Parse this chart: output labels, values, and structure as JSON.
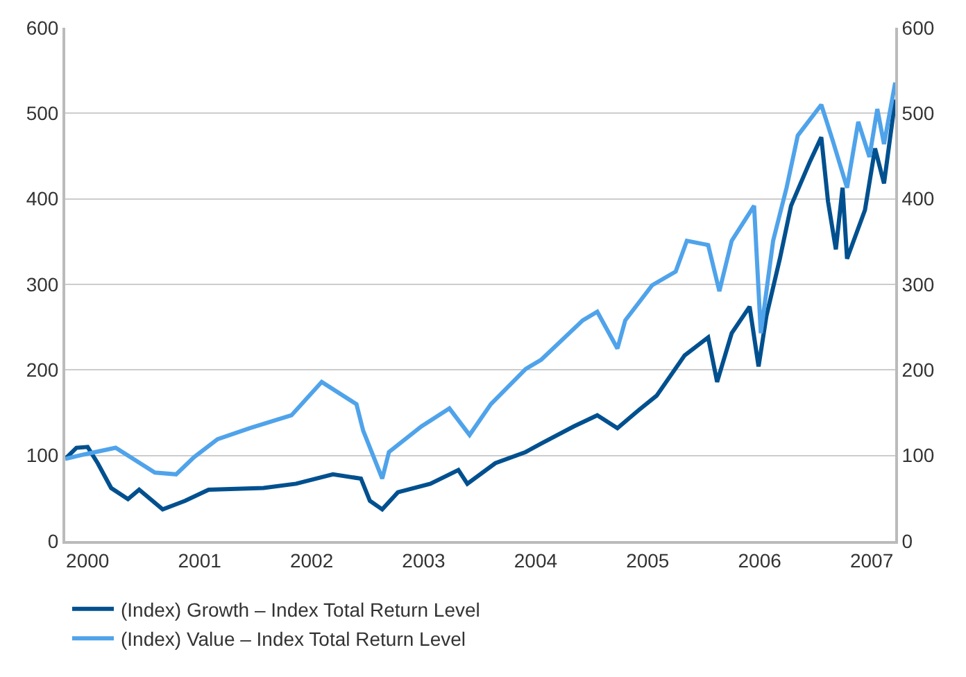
{
  "chart_data": {
    "type": "line",
    "legend": "bottom",
    "grid": "y",
    "marker": "none",
    "line_style": "solid",
    "xlim": [
      1999.8,
      2007.21
    ],
    "xticks": [
      2000,
      2001,
      2002,
      2003,
      2004,
      2005,
      2006,
      2007
    ],
    "ylim": [
      0,
      600
    ],
    "yticks": [
      0,
      100,
      200,
      300,
      400,
      500,
      600
    ],
    "y2lim": [
      0,
      600
    ],
    "y2ticks": [
      0,
      100,
      200,
      300,
      400,
      500,
      600
    ],
    "series": [
      {
        "name": "(Index) Growth – Index Total Return Level",
        "color": "#00508f",
        "x": [
          1999.8,
          1999.9,
          2000.0,
          2000.09,
          2000.21,
          2000.36,
          2000.46,
          2000.67,
          2000.87,
          2001.08,
          2001.57,
          2001.86,
          2002.19,
          2002.44,
          2002.52,
          2002.63,
          2002.77,
          2003.06,
          2003.31,
          2003.39,
          2003.64,
          2003.91,
          2004.05,
          2004.34,
          2004.55,
          2004.73,
          2004.92,
          2005.08,
          2005.33,
          2005.54,
          2005.62,
          2005.75,
          2005.91,
          2005.99,
          2006.06,
          2006.18,
          2006.28,
          2006.45,
          2006.55,
          2006.61,
          2006.68,
          2006.74,
          2006.78,
          2006.94,
          2007.03,
          2007.11,
          2007.21
        ],
        "values": [
          96,
          109,
          110,
          91,
          62,
          49,
          60,
          37,
          47,
          60,
          62,
          67,
          78,
          73,
          47,
          37,
          57,
          67,
          83,
          67,
          91,
          104,
          114,
          134,
          147,
          132,
          153,
          170,
          217,
          238,
          186,
          243,
          274,
          204,
          263,
          330,
          392,
          444,
          472,
          397,
          341,
          413,
          330,
          387,
          459,
          418,
          516
        ]
      },
      {
        "name": "(Index) Value – Index Total Return Level",
        "color": "#4fa3ea",
        "x": [
          1999.8,
          1999.96,
          2000.25,
          2000.6,
          2000.79,
          2000.95,
          2001.16,
          2001.45,
          2001.82,
          2002.09,
          2002.4,
          2002.46,
          2002.63,
          2002.69,
          2002.98,
          2003.23,
          2003.41,
          2003.6,
          2003.91,
          2004.05,
          2004.42,
          2004.55,
          2004.73,
          2004.8,
          2005.04,
          2005.25,
          2005.35,
          2005.54,
          2005.64,
          2005.75,
          2005.95,
          2006.01,
          2006.12,
          2006.24,
          2006.34,
          2006.55,
          2006.65,
          2006.78,
          2006.88,
          2006.98,
          2007.05,
          2007.11,
          2007.21
        ],
        "values": [
          96,
          101,
          109,
          80,
          78,
          98,
          119,
          132,
          147,
          186,
          160,
          129,
          73,
          104,
          134,
          155,
          124,
          160,
          201,
          212,
          258,
          268,
          225,
          258,
          299,
          315,
          351,
          346,
          292,
          351,
          392,
          243,
          351,
          413,
          474,
          510,
          469,
          413,
          490,
          449,
          505,
          464,
          536
        ]
      }
    ]
  }
}
